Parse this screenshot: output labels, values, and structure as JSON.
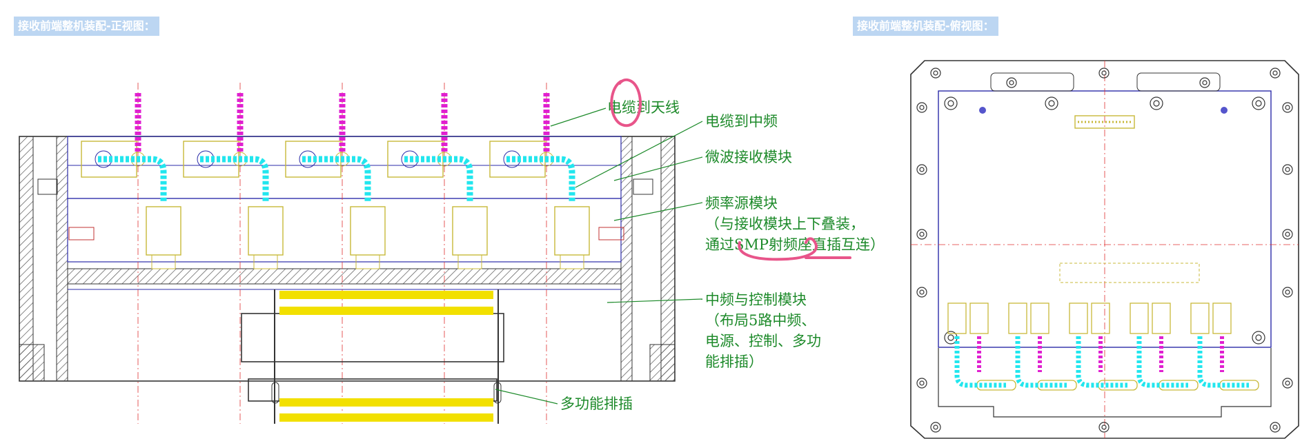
{
  "titles": {
    "front": "接收前端整机装配-正视图：",
    "top": "接收前端整机装配-俯视图："
  },
  "labels": {
    "cable_antenna": "电缆到天线",
    "cable_if": "电缆到中频",
    "microwave_module": "微波接收模块",
    "freq_source_l1": "频率源模块",
    "freq_source_l2": "（与接收模块上下叠装，",
    "freq_source_l3": "通过SMP射频座直插互连）",
    "if_ctrl_l1": "中频与控制模块",
    "if_ctrl_l2": "（布局5路中频、",
    "if_ctrl_l3": "电源、控制、多功",
    "if_ctrl_l4": "能排插）",
    "multi_socket": "多功能排插"
  },
  "colors": {
    "line_blue": "#2a2aa8",
    "center_red": "#e03030",
    "component_yellow": "#c8b838",
    "cable_cyan": "#22e6ee",
    "antenna_magenta": "#e020d0",
    "socket_yellow": "#f2e000",
    "label_green": "#1d8a2a",
    "annotation_pink": "#e8558a",
    "title_bg": "#bcd6f2"
  }
}
